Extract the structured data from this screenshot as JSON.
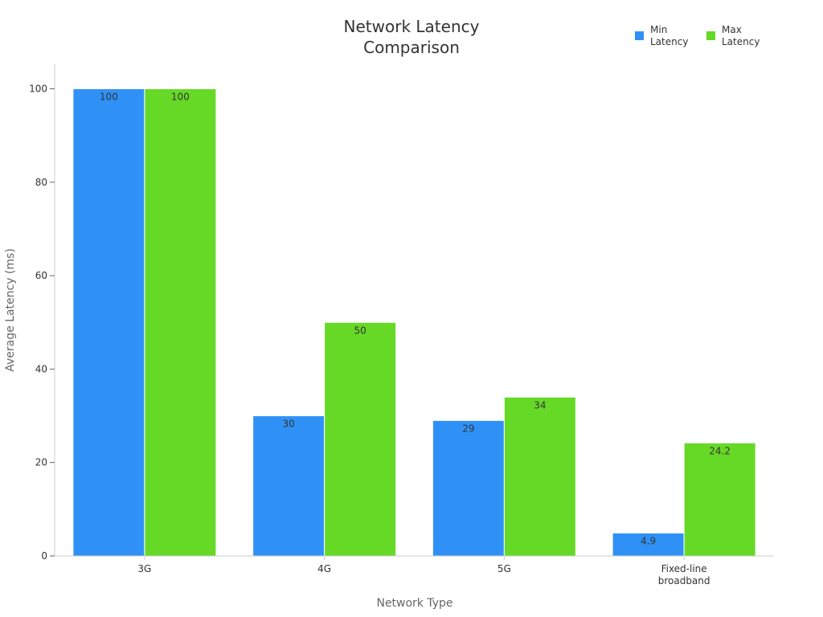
{
  "chart_data": {
    "type": "bar",
    "title_lines": [
      "Network Latency",
      "Comparison"
    ],
    "xlabel": "Network Type",
    "ylabel": "Average Latency (ms)",
    "categories": [
      [
        "3G"
      ],
      [
        "4G"
      ],
      [
        "5G"
      ],
      [
        "Fixed-line",
        "broadband"
      ]
    ],
    "series": [
      {
        "name_lines": [
          "Min",
          "Latency"
        ],
        "color": "#2f91f6",
        "values": [
          100,
          30,
          29,
          4.9
        ]
      },
      {
        "name_lines": [
          "Max",
          "Latency"
        ],
        "color": "#66d926",
        "values": [
          100,
          50,
          34,
          24.2
        ]
      }
    ],
    "ylim": [
      0,
      105
    ],
    "yticks": [
      0,
      20,
      40,
      60,
      80,
      100
    ],
    "grid": false,
    "legend_position": "top-right"
  }
}
